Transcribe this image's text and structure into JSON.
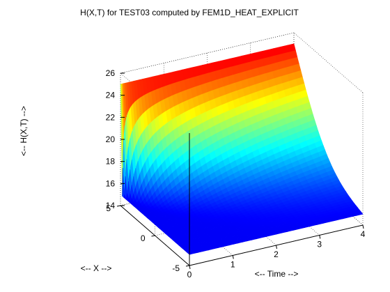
{
  "chart_data": {
    "type": "surface3d",
    "title": "H(X,T) for TEST03 computed by FEM1D_HEAT_EXPLICIT",
    "xlabel": "<-- X -->",
    "ylabel": "<-- Time -->",
    "zlabel": "<-- H(X,T) -->",
    "xlim": [
      -5,
      5
    ],
    "tlim": [
      0,
      4
    ],
    "zlim": [
      14,
      26
    ],
    "x_ticks": [
      "-5",
      "0",
      "5"
    ],
    "t_ticks": [
      "0",
      "1",
      "2",
      "3",
      "4"
    ],
    "z_ticks": [
      "14",
      "16",
      "18",
      "20",
      "22",
      "24",
      "26"
    ],
    "grid": true,
    "colormap": "jet",
    "surface": {
      "edge_x_min": 15,
      "edge_x_max": 25,
      "initial_interior_value": 15,
      "steady_state_shape": "linear in X from 15 at X=-5 to 25 at X=5"
    }
  }
}
